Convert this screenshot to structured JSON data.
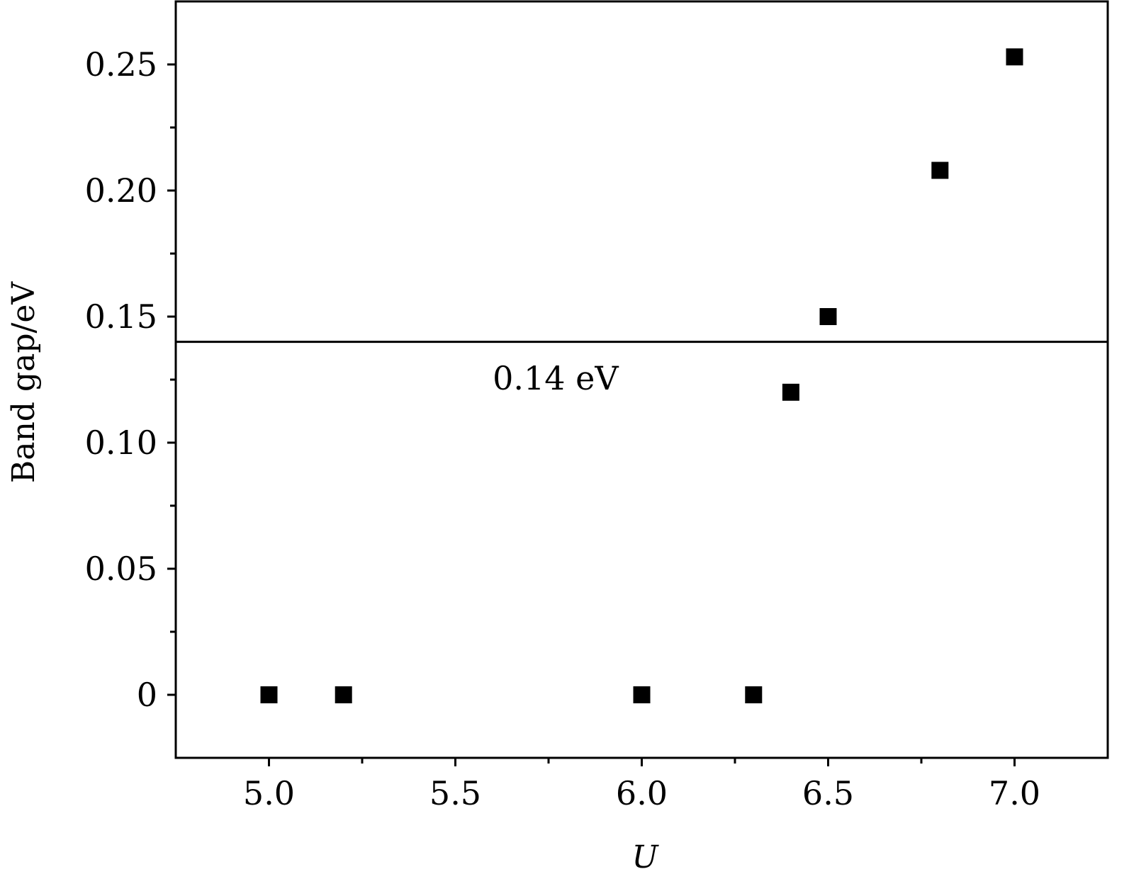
{
  "chart_data": {
    "type": "scatter",
    "title": "",
    "xlabel": "U",
    "ylabel": "Band gap/eV",
    "xlim": [
      4.75,
      7.25
    ],
    "ylim": [
      -0.025,
      0.275
    ],
    "x_ticks": [
      5.0,
      5.5,
      6.0,
      6.5,
      7.0
    ],
    "x_tick_labels": [
      "5.0",
      "5.5",
      "6.0",
      "6.5",
      "7.0"
    ],
    "x_minor_ticks": [
      5.25,
      5.75,
      6.25,
      6.75
    ],
    "y_ticks": [
      0,
      0.05,
      0.1,
      0.15,
      0.2,
      0.25
    ],
    "y_tick_labels": [
      "0",
      "0.05",
      "0.10",
      "0.15",
      "0.20",
      "0.25"
    ],
    "y_minor_ticks": [
      0.025,
      0.075,
      0.125,
      0.175,
      0.225
    ],
    "grid": false,
    "legend": "none",
    "marker": "square",
    "marker_color": "#000000",
    "series": [
      {
        "x": [
          5.0,
          5.2,
          6.0,
          6.3,
          6.4,
          6.5,
          6.8,
          7.0
        ],
        "y": [
          0,
          0,
          0,
          0,
          0.12,
          0.15,
          0.208,
          0.253
        ]
      }
    ],
    "reference_line": {
      "orientation": "horizontal",
      "y": 0.14,
      "label": "0.14 eV",
      "label_x": 5.6,
      "label_y": 0.121
    }
  }
}
